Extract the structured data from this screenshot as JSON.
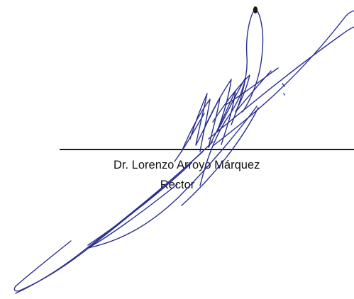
{
  "signature_block": {
    "name": "Dr. Lorenzo Arroyo Márquez",
    "title": "Rector"
  },
  "colors": {
    "ink": "#2a2f8f",
    "text": "#111111",
    "line": "#1a1a1a"
  }
}
